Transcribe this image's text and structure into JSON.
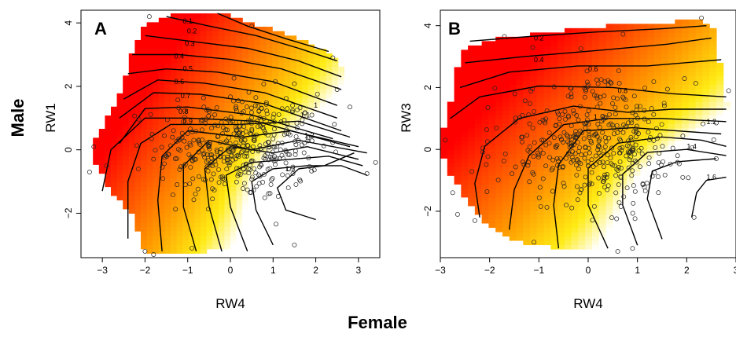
{
  "figure": {
    "row_label": "Male",
    "column_label": "Female"
  },
  "chart_data": [
    {
      "type": "heatmap",
      "panel_label": "A",
      "xlabel": "RW4",
      "ylabel": "RW1",
      "xlim": [
        -3.5,
        3.5
      ],
      "ylim": [
        -3.4,
        4.4
      ],
      "xticks": [
        -3,
        -2,
        -1,
        0,
        1,
        2,
        3
      ],
      "yticks": [
        -2,
        0,
        2,
        4
      ],
      "colors": {
        "low": "#ff0000",
        "mid": "#ff9900",
        "high": "#ffffff"
      },
      "contour_labels": [
        {
          "value": "0.1",
          "x": -1.0,
          "y": 4.05
        },
        {
          "value": "0.2",
          "x": -0.9,
          "y": 3.75
        },
        {
          "value": "0.3",
          "x": -0.95,
          "y": 3.35
        },
        {
          "value": "0.4",
          "x": -1.2,
          "y": 2.95
        },
        {
          "value": "0.5",
          "x": -1.0,
          "y": 2.55
        },
        {
          "value": "0.6",
          "x": -1.2,
          "y": 2.15
        },
        {
          "value": "0.7",
          "x": -1.05,
          "y": 1.7
        },
        {
          "value": "0.8",
          "x": -1.1,
          "y": 1.2
        },
        {
          "value": "0.9",
          "x": -1.0,
          "y": 0.9
        },
        {
          "value": "1",
          "x": 2.0,
          "y": 1.4
        },
        {
          "value": "1.1",
          "x": 1.75,
          "y": 1.1
        },
        {
          "value": "1.2",
          "x": 1.85,
          "y": 0.45
        },
        {
          "value": "1.3",
          "x": 1.4,
          "y": -0.6
        }
      ],
      "contours": [
        [
          [
            -0.3,
            4.3
          ],
          [
            0.4,
            3.9
          ],
          [
            1.3,
            3.5
          ],
          [
            2.3,
            3.1
          ]
        ],
        [
          [
            -1.5,
            4.2
          ],
          [
            -0.5,
            3.9
          ],
          [
            0.6,
            3.6
          ],
          [
            1.6,
            3.2
          ],
          [
            2.5,
            2.8
          ]
        ],
        [
          [
            -2.0,
            3.6
          ],
          [
            -0.8,
            3.4
          ],
          [
            0.4,
            3.2
          ],
          [
            1.6,
            2.8
          ],
          [
            2.6,
            2.3
          ]
        ],
        [
          [
            -2.3,
            3.0
          ],
          [
            -1.2,
            3.0
          ],
          [
            0.0,
            2.85
          ],
          [
            1.2,
            2.55
          ],
          [
            2.6,
            1.9
          ]
        ],
        [
          [
            -2.4,
            2.4
          ],
          [
            -1.5,
            2.55
          ],
          [
            -0.3,
            2.45
          ],
          [
            1.0,
            2.15
          ],
          [
            2.5,
            1.4
          ]
        ],
        [
          [
            -2.5,
            1.6
          ],
          [
            -1.7,
            2.2
          ],
          [
            -0.6,
            2.1
          ],
          [
            0.8,
            1.8
          ],
          [
            2.5,
            1.0
          ]
        ],
        [
          [
            -2.6,
            1.0
          ],
          [
            -1.8,
            1.8
          ],
          [
            -0.7,
            1.75
          ],
          [
            0.8,
            1.45
          ],
          [
            2.6,
            0.6
          ]
        ],
        [
          [
            -2.6,
            0.2
          ],
          [
            -2.0,
            1.3
          ],
          [
            -1.0,
            1.35
          ],
          [
            0.5,
            1.1
          ],
          [
            2.4,
            0.35
          ]
        ],
        [
          [
            -3.0,
            -1.3
          ],
          [
            -2.8,
            0.0
          ],
          [
            -2.0,
            1.0
          ],
          [
            -1.0,
            1.0
          ],
          [
            0.6,
            0.9
          ],
          [
            2.8,
            0.1
          ]
        ],
        [
          [
            -2.4,
            -2.8
          ],
          [
            -2.4,
            -1.0
          ],
          [
            -2.1,
            0.2
          ],
          [
            -1.4,
            0.8
          ],
          [
            0.2,
            0.8
          ],
          [
            1.6,
            0.9
          ],
          [
            2.8,
            0.4
          ]
        ],
        [
          [
            -1.6,
            -3.2
          ],
          [
            -1.7,
            -1.6
          ],
          [
            -1.6,
            -0.2
          ],
          [
            -1.0,
            0.6
          ],
          [
            0.3,
            0.4
          ],
          [
            1.4,
            0.6
          ],
          [
            3.0,
            0.1
          ]
        ],
        [
          [
            -0.8,
            -3.2
          ],
          [
            -1.1,
            -1.8
          ],
          [
            -1.1,
            -0.5
          ],
          [
            -0.5,
            0.3
          ],
          [
            0.5,
            0.0
          ],
          [
            1.6,
            0.3
          ],
          [
            3.2,
            -0.1
          ]
        ],
        [
          [
            -0.2,
            -3.2
          ],
          [
            -0.5,
            -1.8
          ],
          [
            -0.6,
            -0.6
          ],
          [
            0.0,
            0.1
          ],
          [
            1.0,
            -0.1
          ],
          [
            1.8,
            0.1
          ],
          [
            3.0,
            -0.3
          ]
        ],
        [
          [
            0.4,
            -3.2
          ],
          [
            0.0,
            -1.8
          ],
          [
            -0.1,
            -0.8
          ],
          [
            0.5,
            -0.4
          ],
          [
            1.4,
            -0.3
          ],
          [
            2.3,
            -0.2
          ],
          [
            3.1,
            -0.5
          ]
        ],
        [
          [
            1.0,
            -3.0
          ],
          [
            0.6,
            -1.9
          ],
          [
            0.5,
            -1.0
          ],
          [
            1.0,
            -0.6
          ],
          [
            1.8,
            -0.5
          ],
          [
            2.6,
            -0.5
          ],
          [
            3.2,
            -0.8
          ]
        ],
        [
          [
            2.0,
            -2.2
          ],
          [
            1.3,
            -1.9
          ],
          [
            1.1,
            -1.2
          ],
          [
            1.6,
            -0.6
          ],
          [
            2.2,
            -0.5
          ],
          [
            2.9,
            -0.1
          ]
        ]
      ],
      "hull": [
        [
          -2.0,
          3.9
        ],
        [
          -1.3,
          4.3
        ],
        [
          -0.2,
          4.3
        ],
        [
          0.5,
          4.0
        ],
        [
          1.5,
          3.6
        ],
        [
          2.4,
          3.0
        ],
        [
          2.9,
          1.9
        ],
        [
          3.3,
          0.6
        ],
        [
          3.1,
          -0.2
        ],
        [
          2.1,
          -0.8
        ],
        [
          1.6,
          -3.0
        ],
        [
          0.8,
          -3.0
        ],
        [
          -0.6,
          -3.2
        ],
        [
          -2.0,
          -3.2
        ],
        [
          -2.3,
          -2.0
        ],
        [
          -2.8,
          -1.3
        ],
        [
          -3.3,
          0.0
        ],
        [
          -2.9,
          1.0
        ],
        [
          -2.5,
          2.0
        ],
        [
          -2.3,
          3.1
        ]
      ],
      "outliers": [
        [
          -1.9,
          4.2
        ],
        [
          0.5,
          3.9
        ],
        [
          2.4,
          2.9
        ],
        [
          -3.3,
          -0.7
        ],
        [
          -3.2,
          0.1
        ],
        [
          3.4,
          -0.4
        ],
        [
          3.2,
          -0.75
        ],
        [
          -1.8,
          -3.3
        ],
        [
          -2.0,
          -3.2
        ],
        [
          -0.9,
          -3.1
        ],
        [
          1.5,
          -3.0
        ],
        [
          -2.9,
          -0.5
        ],
        [
          2.8,
          1.35
        ],
        [
          2.5,
          1.9
        ]
      ]
    },
    {
      "type": "heatmap",
      "panel_label": "B",
      "xlabel": "RW4",
      "ylabel": "RW3",
      "xlim": [
        -3.0,
        3.0
      ],
      "ylim": [
        -3.5,
        4.5
      ],
      "xticks": [
        -3,
        -2,
        -1,
        0,
        1,
        2,
        3
      ],
      "yticks": [
        -2,
        0,
        2,
        4
      ],
      "colors": {
        "low": "#ff0000",
        "mid": "#ff9900",
        "high": "#ffffff"
      },
      "contour_labels": [
        {
          "value": "0.2",
          "x": -1.0,
          "y": 3.6
        },
        {
          "value": "0.4",
          "x": -1.0,
          "y": 2.9
        },
        {
          "value": "0.6",
          "x": 0.1,
          "y": 2.6
        },
        {
          "value": "0.8",
          "x": 0.7,
          "y": 1.9
        },
        {
          "value": "1",
          "x": 0.15,
          "y": 1.05
        },
        {
          "value": "1.2",
          "x": 2.5,
          "y": 0.9
        },
        {
          "value": "1.4",
          "x": 2.1,
          "y": 0.1
        },
        {
          "value": "1.6",
          "x": 2.5,
          "y": -0.9
        }
      ],
      "contours": [
        [
          [
            -2.4,
            3.5
          ],
          [
            -1.2,
            3.65
          ],
          [
            0.2,
            3.8
          ],
          [
            1.5,
            3.9
          ],
          [
            2.4,
            4.0
          ]
        ],
        [
          [
            -2.5,
            2.8
          ],
          [
            -1.3,
            3.0
          ],
          [
            0.2,
            3.2
          ],
          [
            1.6,
            3.4
          ],
          [
            2.5,
            3.6
          ]
        ],
        [
          [
            -2.6,
            2.0
          ],
          [
            -1.6,
            2.5
          ],
          [
            -0.2,
            2.7
          ],
          [
            1.2,
            2.7
          ],
          [
            2.7,
            2.9
          ]
        ],
        [
          [
            -2.8,
            1.0
          ],
          [
            -2.2,
            1.7
          ],
          [
            -1.0,
            2.05
          ],
          [
            0.5,
            2.0
          ],
          [
            1.7,
            1.8
          ],
          [
            2.8,
            1.7
          ]
        ],
        [
          [
            -2.2,
            -2.2
          ],
          [
            -2.3,
            -1.1
          ],
          [
            -2.1,
            0.1
          ],
          [
            -1.4,
            1.0
          ],
          [
            -0.3,
            1.4
          ],
          [
            0.8,
            1.2
          ],
          [
            1.7,
            1.3
          ],
          [
            2.8,
            1.3
          ]
        ],
        [
          [
            -1.6,
            -2.6
          ],
          [
            -1.5,
            -1.3
          ],
          [
            -1.2,
            -0.2
          ],
          [
            -0.5,
            0.8
          ],
          [
            0.4,
            1.0
          ],
          [
            1.5,
            1.0
          ],
          [
            2.8,
            0.9
          ]
        ],
        [
          [
            -0.6,
            -3.2
          ],
          [
            -0.7,
            -1.8
          ],
          [
            -0.6,
            -0.5
          ],
          [
            -0.1,
            0.6
          ],
          [
            0.9,
            0.7
          ],
          [
            1.8,
            0.6
          ],
          [
            2.7,
            0.5
          ]
        ],
        [
          [
            0.4,
            -3.2
          ],
          [
            0.0,
            -1.8
          ],
          [
            0.0,
            -0.6
          ],
          [
            0.6,
            0.2
          ],
          [
            1.5,
            0.4
          ],
          [
            2.3,
            0.3
          ],
          [
            2.8,
            0.1
          ]
        ],
        [
          [
            1.0,
            -3.1
          ],
          [
            0.7,
            -1.8
          ],
          [
            0.7,
            -0.8
          ],
          [
            1.2,
            -0.1
          ],
          [
            2.0,
            0.0
          ],
          [
            2.8,
            -0.2
          ]
        ],
        [
          [
            1.5,
            -2.9
          ],
          [
            1.2,
            -1.6
          ],
          [
            1.3,
            -0.7
          ],
          [
            1.8,
            -0.4
          ],
          [
            2.6,
            -0.3
          ]
        ],
        [
          [
            2.1,
            -2.2
          ],
          [
            2.2,
            -1.4
          ],
          [
            2.4,
            -1.0
          ],
          [
            2.8,
            -0.9
          ]
        ]
      ],
      "hull": [
        [
          -2.5,
          3.3
        ],
        [
          -1.8,
          3.6
        ],
        [
          -0.7,
          3.8
        ],
        [
          0.4,
          4.0
        ],
        [
          1.6,
          4.1
        ],
        [
          2.3,
          4.2
        ],
        [
          2.6,
          3.8
        ],
        [
          2.7,
          2.4
        ],
        [
          2.8,
          1.6
        ],
        [
          2.9,
          0.8
        ],
        [
          2.7,
          -0.2
        ],
        [
          2.3,
          -1.8
        ],
        [
          1.5,
          -2.9
        ],
        [
          0.5,
          -3.2
        ],
        [
          -0.5,
          -3.2
        ],
        [
          -1.4,
          -3.0
        ],
        [
          -2.1,
          -2.4
        ],
        [
          -2.5,
          -1.5
        ],
        [
          -2.9,
          -0.6
        ],
        [
          -3.0,
          0.3
        ],
        [
          -2.8,
          1.5
        ],
        [
          -2.7,
          2.5
        ]
      ],
      "outliers": [
        [
          2.3,
          4.25
        ],
        [
          -1.7,
          3.65
        ],
        [
          2.85,
          1.9
        ],
        [
          -2.65,
          -2.1
        ],
        [
          -2.75,
          -1.4
        ],
        [
          -1.1,
          -3.0
        ],
        [
          0.6,
          -3.3
        ],
        [
          0.9,
          -3.2
        ],
        [
          2.15,
          -2.2
        ],
        [
          2.6,
          -0.3
        ],
        [
          -2.9,
          0.3
        ],
        [
          -2.3,
          -2.3
        ]
      ]
    }
  ]
}
